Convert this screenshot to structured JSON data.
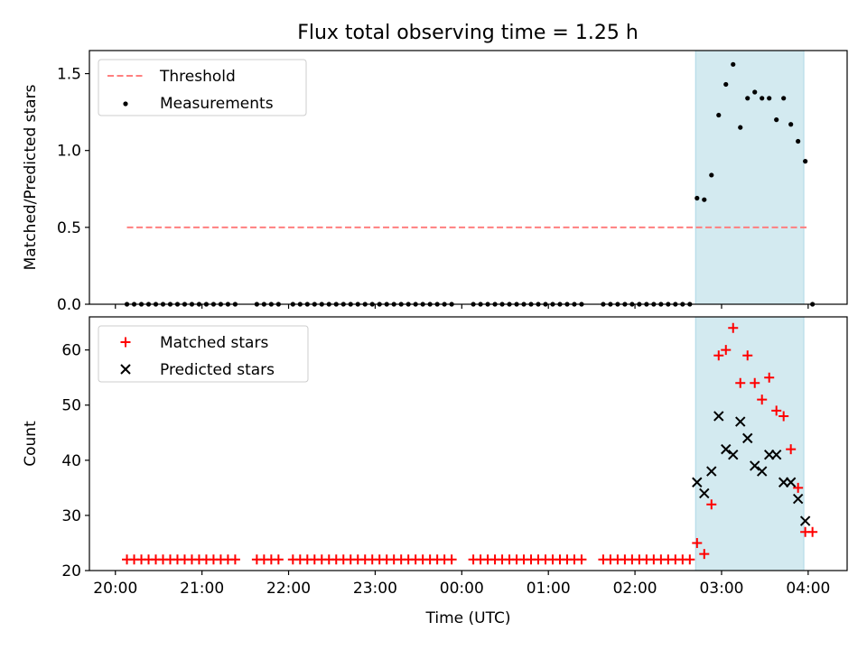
{
  "title": "Flux total observing time = 1.25 h",
  "colors": {
    "threshold": "#ff7f7f",
    "measurement": "#000000",
    "matched": "#ff0000",
    "predicted": "#000000",
    "highlight_fill": "#d3eaf0",
    "highlight_edge": "#add8e6"
  },
  "chart_data": [
    {
      "type": "scatter",
      "panel": "top",
      "ylabel": "Matched/Predicted stars",
      "ylim": [
        0,
        1.65
      ],
      "yticks": [
        0.0,
        0.5,
        1.0,
        1.5
      ],
      "ytick_labels": [
        "0.0",
        "0.5",
        "1.0",
        "1.5"
      ],
      "x_unit": "hours since 20:00 UTC",
      "xlim": [
        -0.3,
        8.45
      ],
      "legend": {
        "placement": "top-left",
        "entries": [
          "Threshold",
          "Measurements"
        ]
      },
      "highlight_span": {
        "start": "02:42",
        "end": "03:57"
      },
      "threshold": {
        "name": "Threshold",
        "value": 0.5,
        "x_start": "20:08",
        "x_end": "04:00"
      },
      "series": [
        {
          "name": "Measurements",
          "points": [
            [
              "20:08",
              0
            ],
            [
              "20:13",
              0
            ],
            [
              "20:18",
              0
            ],
            [
              "20:23",
              0
            ],
            [
              "20:28",
              0
            ],
            [
              "20:33",
              0
            ],
            [
              "20:38",
              0
            ],
            [
              "20:43",
              0
            ],
            [
              "20:48",
              0
            ],
            [
              "20:53",
              0
            ],
            [
              "20:58",
              0
            ],
            [
              "21:03",
              0
            ],
            [
              "21:08",
              0
            ],
            [
              "21:13",
              0
            ],
            [
              "21:18",
              0
            ],
            [
              "21:23",
              0
            ],
            [
              "21:38",
              0
            ],
            [
              "21:43",
              0
            ],
            [
              "21:48",
              0
            ],
            [
              "21:53",
              0
            ],
            [
              "22:03",
              0
            ],
            [
              "22:08",
              0
            ],
            [
              "22:13",
              0
            ],
            [
              "22:18",
              0
            ],
            [
              "22:23",
              0
            ],
            [
              "22:28",
              0
            ],
            [
              "22:33",
              0
            ],
            [
              "22:38",
              0
            ],
            [
              "22:43",
              0
            ],
            [
              "22:48",
              0
            ],
            [
              "22:53",
              0
            ],
            [
              "22:58",
              0
            ],
            [
              "23:03",
              0
            ],
            [
              "23:08",
              0
            ],
            [
              "23:13",
              0
            ],
            [
              "23:18",
              0
            ],
            [
              "23:23",
              0
            ],
            [
              "23:28",
              0
            ],
            [
              "23:33",
              0
            ],
            [
              "23:38",
              0
            ],
            [
              "23:43",
              0
            ],
            [
              "23:48",
              0
            ],
            [
              "23:53",
              0
            ],
            [
              "00:08",
              0
            ],
            [
              "00:13",
              0
            ],
            [
              "00:18",
              0
            ],
            [
              "00:23",
              0
            ],
            [
              "00:28",
              0
            ],
            [
              "00:33",
              0
            ],
            [
              "00:38",
              0
            ],
            [
              "00:43",
              0
            ],
            [
              "00:48",
              0
            ],
            [
              "00:53",
              0
            ],
            [
              "00:58",
              0
            ],
            [
              "01:03",
              0
            ],
            [
              "01:08",
              0
            ],
            [
              "01:13",
              0
            ],
            [
              "01:18",
              0
            ],
            [
              "01:23",
              0
            ],
            [
              "01:38",
              0
            ],
            [
              "01:43",
              0
            ],
            [
              "01:48",
              0
            ],
            [
              "01:53",
              0
            ],
            [
              "01:58",
              0
            ],
            [
              "02:03",
              0
            ],
            [
              "02:08",
              0
            ],
            [
              "02:13",
              0
            ],
            [
              "02:18",
              0
            ],
            [
              "02:23",
              0
            ],
            [
              "02:28",
              0
            ],
            [
              "02:33",
              0
            ],
            [
              "02:38",
              0.0
            ],
            [
              "02:43",
              0.69
            ],
            [
              "02:48",
              0.68
            ],
            [
              "02:53",
              0.84
            ],
            [
              "02:58",
              1.23
            ],
            [
              "03:03",
              1.43
            ],
            [
              "03:08",
              1.56
            ],
            [
              "03:13",
              1.15
            ],
            [
              "03:18",
              1.34
            ],
            [
              "03:23",
              1.38
            ],
            [
              "03:28",
              1.34
            ],
            [
              "03:33",
              1.34
            ],
            [
              "03:38",
              1.2
            ],
            [
              "03:43",
              1.34
            ],
            [
              "03:48",
              1.17
            ],
            [
              "03:53",
              1.06
            ],
            [
              "03:58",
              0.93
            ],
            [
              "04:03",
              0.0
            ]
          ]
        }
      ]
    },
    {
      "type": "scatter",
      "panel": "bottom",
      "xlabel": "Time (UTC)",
      "ylabel": "Count",
      "ylim": [
        20,
        66
      ],
      "yticks": [
        20,
        30,
        40,
        50,
        60
      ],
      "ytick_labels": [
        "20",
        "30",
        "40",
        "50",
        "60"
      ],
      "x_unit": "hours since 20:00 UTC",
      "xlim": [
        -0.3,
        8.45
      ],
      "xticks": [
        0,
        1,
        2,
        3,
        4,
        5,
        6,
        7,
        8
      ],
      "xtick_labels": [
        "20:00",
        "21:00",
        "22:00",
        "23:00",
        "00:00",
        "01:00",
        "02:00",
        "03:00",
        "04:00"
      ],
      "legend": {
        "placement": "top-left",
        "entries": [
          "Matched stars",
          "Predicted stars"
        ]
      },
      "highlight_span": {
        "start": "02:42",
        "end": "03:57"
      },
      "series": [
        {
          "name": "Matched stars",
          "marker": "plus",
          "points": [
            [
              "20:08",
              22
            ],
            [
              "20:13",
              22
            ],
            [
              "20:18",
              22
            ],
            [
              "20:23",
              22
            ],
            [
              "20:28",
              22
            ],
            [
              "20:33",
              22
            ],
            [
              "20:38",
              22
            ],
            [
              "20:43",
              22
            ],
            [
              "20:48",
              22
            ],
            [
              "20:53",
              22
            ],
            [
              "20:58",
              22
            ],
            [
              "21:03",
              22
            ],
            [
              "21:08",
              22
            ],
            [
              "21:13",
              22
            ],
            [
              "21:18",
              22
            ],
            [
              "21:23",
              22
            ],
            [
              "21:38",
              22
            ],
            [
              "21:43",
              22
            ],
            [
              "21:48",
              22
            ],
            [
              "21:53",
              22
            ],
            [
              "22:03",
              22
            ],
            [
              "22:08",
              22
            ],
            [
              "22:13",
              22
            ],
            [
              "22:18",
              22
            ],
            [
              "22:23",
              22
            ],
            [
              "22:28",
              22
            ],
            [
              "22:33",
              22
            ],
            [
              "22:38",
              22
            ],
            [
              "22:43",
              22
            ],
            [
              "22:48",
              22
            ],
            [
              "22:53",
              22
            ],
            [
              "22:58",
              22
            ],
            [
              "23:03",
              22
            ],
            [
              "23:08",
              22
            ],
            [
              "23:13",
              22
            ],
            [
              "23:18",
              22
            ],
            [
              "23:23",
              22
            ],
            [
              "23:28",
              22
            ],
            [
              "23:33",
              22
            ],
            [
              "23:38",
              22
            ],
            [
              "23:43",
              22
            ],
            [
              "23:48",
              22
            ],
            [
              "23:53",
              22
            ],
            [
              "00:08",
              22
            ],
            [
              "00:13",
              22
            ],
            [
              "00:18",
              22
            ],
            [
              "00:23",
              22
            ],
            [
              "00:28",
              22
            ],
            [
              "00:33",
              22
            ],
            [
              "00:38",
              22
            ],
            [
              "00:43",
              22
            ],
            [
              "00:48",
              22
            ],
            [
              "00:53",
              22
            ],
            [
              "00:58",
              22
            ],
            [
              "01:03",
              22
            ],
            [
              "01:08",
              22
            ],
            [
              "01:13",
              22
            ],
            [
              "01:18",
              22
            ],
            [
              "01:23",
              22
            ],
            [
              "01:38",
              22
            ],
            [
              "01:43",
              22
            ],
            [
              "01:48",
              22
            ],
            [
              "01:53",
              22
            ],
            [
              "01:58",
              22
            ],
            [
              "02:03",
              22
            ],
            [
              "02:08",
              22
            ],
            [
              "02:13",
              22
            ],
            [
              "02:18",
              22
            ],
            [
              "02:23",
              22
            ],
            [
              "02:28",
              22
            ],
            [
              "02:33",
              22
            ],
            [
              "02:38",
              22
            ],
            [
              "02:43",
              25
            ],
            [
              "02:48",
              23
            ],
            [
              "02:53",
              32
            ],
            [
              "02:58",
              59
            ],
            [
              "03:03",
              60
            ],
            [
              "03:08",
              64
            ],
            [
              "03:13",
              54
            ],
            [
              "03:18",
              59
            ],
            [
              "03:23",
              54
            ],
            [
              "03:28",
              51
            ],
            [
              "03:33",
              55
            ],
            [
              "03:38",
              49
            ],
            [
              "03:43",
              48
            ],
            [
              "03:48",
              42
            ],
            [
              "03:53",
              35
            ],
            [
              "03:58",
              27
            ],
            [
              "04:03",
              27
            ]
          ]
        },
        {
          "name": "Predicted stars",
          "marker": "x",
          "points": [
            [
              "02:43",
              36
            ],
            [
              "02:48",
              34
            ],
            [
              "02:53",
              38
            ],
            [
              "02:58",
              48
            ],
            [
              "03:03",
              42
            ],
            [
              "03:08",
              41
            ],
            [
              "03:13",
              47
            ],
            [
              "03:18",
              44
            ],
            [
              "03:23",
              39
            ],
            [
              "03:28",
              38
            ],
            [
              "03:33",
              41
            ],
            [
              "03:38",
              41
            ],
            [
              "03:43",
              36
            ],
            [
              "03:48",
              36
            ],
            [
              "03:53",
              33
            ],
            [
              "03:58",
              29
            ]
          ]
        }
      ]
    }
  ]
}
